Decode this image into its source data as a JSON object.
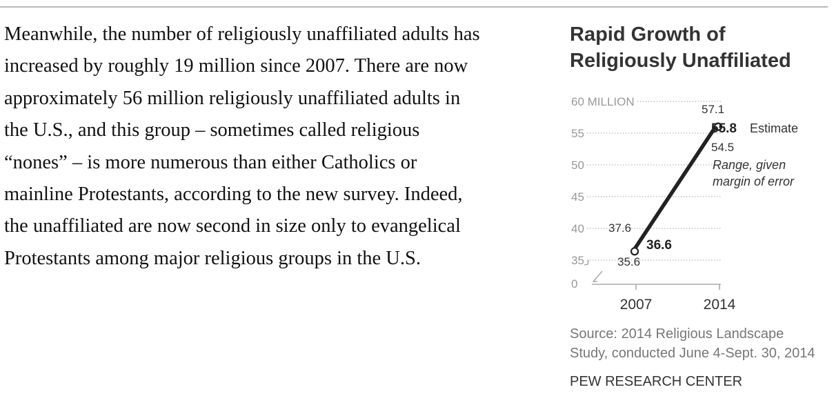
{
  "article": {
    "paragraph": "Meanwhile, the number of religiously unaffiliated adults has\nincreased by roughly 19 million since 2007. There are now\napproximately 56 million religiously unaffiliated adults in\nthe U.S., and this group – sometimes called religious\n“nones” – is more numerous than either Catholics or\nmainline Protestants, according to the new survey. Indeed,\nthe unaffiliated are now second in size only to evangelical\nProtestants among major religious groups in the U.S."
  },
  "chart_data": {
    "type": "line",
    "title": "Rapid Growth of\nReligiously Unaffiliated",
    "x": [
      "2007",
      "2014"
    ],
    "series": [
      {
        "values": [
          36.6,
          55.8
        ],
        "low": [
          35.6,
          54.5
        ],
        "high": [
          37.6,
          57.1
        ]
      }
    ],
    "y_ticks": [
      {
        "value": 60,
        "label": "60 MILLION"
      },
      {
        "value": 55,
        "label": "55"
      },
      {
        "value": 50,
        "label": "50"
      },
      {
        "value": 45,
        "label": "45"
      },
      {
        "value": 40,
        "label": "40"
      },
      {
        "value": 35,
        "label": "35"
      },
      {
        "value": 0,
        "label": "0"
      }
    ],
    "axis_break": true,
    "grid": "dotted",
    "labels": {
      "end_value": "55.8",
      "end_note": "Estimate",
      "end_high": "57.1",
      "end_low": "54.5",
      "range_note": "Range, given\nmargin of error",
      "start_value": "36.6",
      "start_high": "37.6",
      "start_low": "35.6"
    },
    "colors": {
      "line": "#222222",
      "grid": "#b5b5b5",
      "tick_text": "#999999",
      "label_text": "#333333"
    }
  },
  "source": "Source: 2014 Religious Landscape\nStudy, conducted June 4-Sept. 30, 2014",
  "org": "PEW RESEARCH CENTER"
}
